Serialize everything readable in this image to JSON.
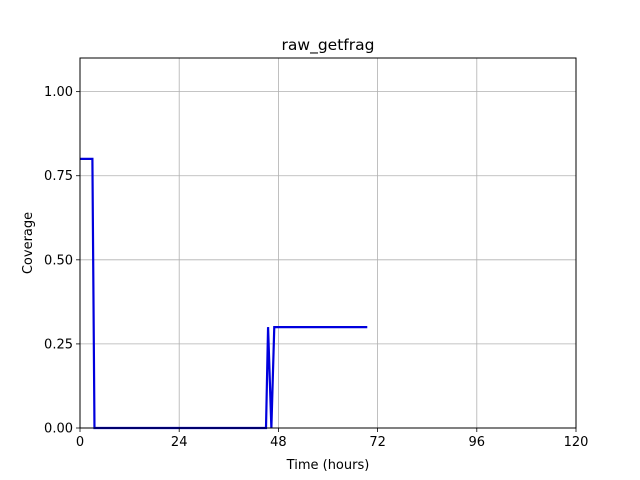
{
  "chart_data": {
    "type": "line",
    "title": "raw_getfrag",
    "xlabel": "Time (hours)",
    "ylabel": "Coverage",
    "xlim": [
      0,
      120
    ],
    "ylim": [
      0,
      1.1
    ],
    "xticks": [
      0,
      24,
      48,
      72,
      96,
      120
    ],
    "yticks": [
      0.0,
      0.25,
      0.5,
      0.75,
      1.0
    ],
    "xtick_labels": [
      "0",
      "24",
      "48",
      "72",
      "96",
      "120"
    ],
    "ytick_labels": [
      "0.00",
      "0.25",
      "0.50",
      "0.75",
      "1.00"
    ],
    "grid": true,
    "legend": "none",
    "series": [
      {
        "color": "#0000dd",
        "x": [
          0,
          3,
          3.5,
          45,
          45.5,
          46.3,
          47,
          69.5
        ],
        "y": [
          0.8,
          0.8,
          0.0,
          0.0,
          0.3,
          0.0,
          0.3,
          0.3
        ]
      }
    ]
  }
}
